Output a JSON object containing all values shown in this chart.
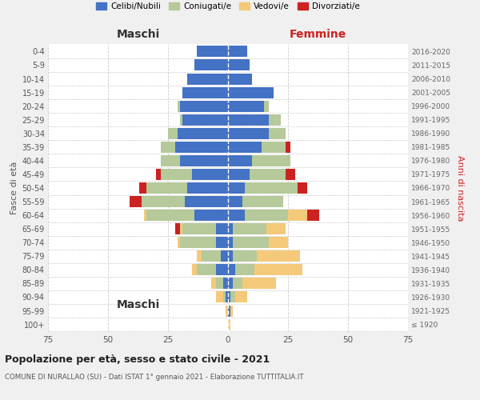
{
  "age_groups": [
    "100+",
    "95-99",
    "90-94",
    "85-89",
    "80-84",
    "75-79",
    "70-74",
    "65-69",
    "60-64",
    "55-59",
    "50-54",
    "45-49",
    "40-44",
    "35-39",
    "30-34",
    "25-29",
    "20-24",
    "15-19",
    "10-14",
    "5-9",
    "0-4"
  ],
  "birth_years": [
    "≤ 1920",
    "1921-1925",
    "1926-1930",
    "1931-1935",
    "1936-1940",
    "1941-1945",
    "1946-1950",
    "1951-1955",
    "1956-1960",
    "1961-1965",
    "1966-1970",
    "1971-1975",
    "1976-1980",
    "1981-1985",
    "1986-1990",
    "1991-1995",
    "1996-2000",
    "2001-2005",
    "2006-2010",
    "2011-2015",
    "2016-2020"
  ],
  "colors": {
    "celibe": "#4472c4",
    "coniugato": "#b5c99a",
    "vedovo": "#f5c97a",
    "divorziato": "#cc2222"
  },
  "males": {
    "celibe": [
      0,
      0,
      1,
      2,
      5,
      3,
      5,
      5,
      14,
      18,
      17,
      15,
      20,
      22,
      21,
      19,
      20,
      19,
      17,
      14,
      13
    ],
    "coniugato": [
      0,
      0,
      1,
      3,
      8,
      8,
      15,
      14,
      20,
      18,
      17,
      13,
      8,
      6,
      4,
      1,
      1,
      0,
      0,
      0,
      0
    ],
    "vedovo": [
      0,
      1,
      3,
      2,
      2,
      2,
      1,
      1,
      1,
      0,
      0,
      0,
      0,
      0,
      0,
      0,
      0,
      0,
      0,
      0,
      0
    ],
    "divorziato": [
      0,
      0,
      0,
      0,
      0,
      0,
      0,
      2,
      0,
      5,
      3,
      2,
      0,
      0,
      0,
      0,
      0,
      0,
      0,
      0,
      0
    ]
  },
  "females": {
    "nubile": [
      0,
      1,
      1,
      2,
      3,
      2,
      2,
      2,
      7,
      6,
      7,
      9,
      10,
      14,
      17,
      17,
      15,
      19,
      10,
      9,
      8
    ],
    "coniugata": [
      0,
      0,
      2,
      4,
      8,
      10,
      15,
      14,
      18,
      17,
      22,
      15,
      16,
      10,
      7,
      5,
      2,
      0,
      0,
      0,
      0
    ],
    "vedova": [
      1,
      1,
      5,
      14,
      20,
      18,
      8,
      8,
      8,
      0,
      0,
      0,
      0,
      0,
      0,
      0,
      0,
      0,
      0,
      0,
      0
    ],
    "divorziata": [
      0,
      0,
      0,
      0,
      0,
      0,
      0,
      0,
      5,
      0,
      4,
      4,
      0,
      2,
      0,
      0,
      0,
      0,
      0,
      0,
      0
    ]
  },
  "title": "Popolazione per età, sesso e stato civile - 2021",
  "subtitle": "COMUNE DI NURALLAO (SU) - Dati ISTAT 1° gennaio 2021 - Elaborazione TUTTITALIA.IT",
  "xlabel_left": "Maschi",
  "xlabel_right": "Femmine",
  "ylabel_left": "Fasce di età",
  "ylabel_right": "Anni di nascita",
  "xlim": 75,
  "legend_labels": [
    "Celibi/Nubili",
    "Coniugati/e",
    "Vedovi/e",
    "Divorziati/e"
  ],
  "bg_color": "#f0f0f0",
  "plot_bg_color": "#ffffff",
  "grid_color": "#cccccc"
}
